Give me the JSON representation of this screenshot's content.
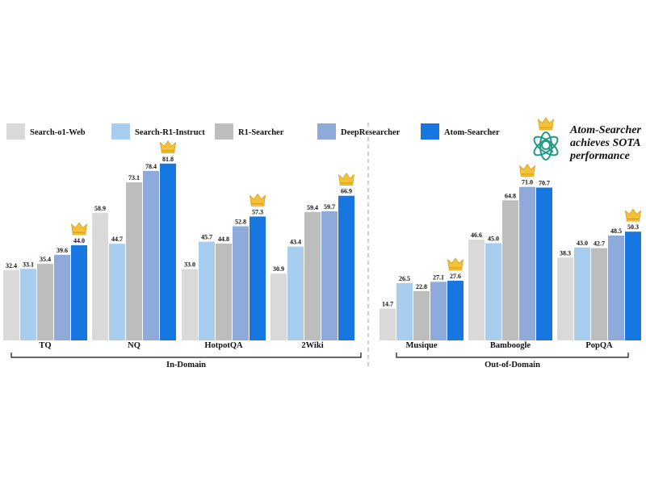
{
  "chart_data": [
    {
      "type": "bar",
      "panel": "in-domain",
      "group_label": "In-Domain",
      "categories": [
        "TQ",
        "NQ",
        "HotpotQA",
        "2Wiki"
      ],
      "series": [
        {
          "name": "Search-o1-Web",
          "color": "#d9d9d9",
          "values": [
            32.4,
            58.9,
            33.0,
            30.9
          ]
        },
        {
          "name": "Search-R1-Instruct",
          "color": "#a9cdee",
          "values": [
            33.1,
            44.7,
            45.7,
            43.4
          ]
        },
        {
          "name": "R1-Searcher",
          "color": "#bdbdbd",
          "values": [
            35.4,
            73.1,
            44.8,
            59.4
          ]
        },
        {
          "name": "DeepResearcher",
          "color": "#8eaadb",
          "values": [
            39.6,
            78.4,
            52.8,
            59.7
          ]
        },
        {
          "name": "Atom-Searcher",
          "color": "#1776e0",
          "values": [
            44.0,
            81.8,
            57.3,
            66.9
          ]
        }
      ],
      "ylim": [
        0,
        90
      ],
      "best_series": "Atom-Searcher",
      "best_marker": "crown-icon"
    },
    {
      "type": "bar",
      "panel": "out-of-domain",
      "group_label": "Out-of-Domain",
      "categories": [
        "Musique",
        "Bamboogle",
        "PopQA"
      ],
      "series": [
        {
          "name": "Search-o1-Web",
          "color": "#d9d9d9",
          "values": [
            14.7,
            46.6,
            38.3
          ]
        },
        {
          "name": "Search-R1-Instruct",
          "color": "#a9cdee",
          "values": [
            26.5,
            45.0,
            43.0
          ]
        },
        {
          "name": "R1-Searcher",
          "color": "#bdbdbd",
          "values": [
            22.8,
            64.8,
            42.7
          ]
        },
        {
          "name": "DeepResearcher",
          "color": "#8eaadb",
          "values": [
            27.1,
            71.0,
            48.5
          ]
        },
        {
          "name": "Atom-Searcher",
          "color": "#1776e0",
          "values": [
            27.6,
            70.7,
            50.3
          ]
        }
      ],
      "ylim": [
        0,
        90
      ],
      "best_marker": "crown-icon",
      "best_crowned": [
        4,
        3,
        4
      ]
    }
  ],
  "legend": {
    "placement": "top",
    "items": [
      {
        "name": "Search-o1-Web",
        "color": "#d9d9d9"
      },
      {
        "name": "Search-R1-Instruct",
        "color": "#a9cdee"
      },
      {
        "name": "R1-Searcher",
        "color": "#bdbdbd"
      },
      {
        "name": "DeepResearcher",
        "color": "#8eaadb"
      },
      {
        "name": "Atom-Searcher",
        "color": "#1776e0"
      }
    ]
  },
  "annotation": {
    "lines": [
      "Atom-Searcher",
      "achieves SOTA",
      "performance"
    ],
    "logo_icon": "atom-search-logo-icon",
    "crown_icon": "crown-icon"
  },
  "colors": {
    "crown": "#f4c23a",
    "crown_dark": "#d89d10",
    "logo": "#1f9a86",
    "divider": "#9a9a9a"
  }
}
